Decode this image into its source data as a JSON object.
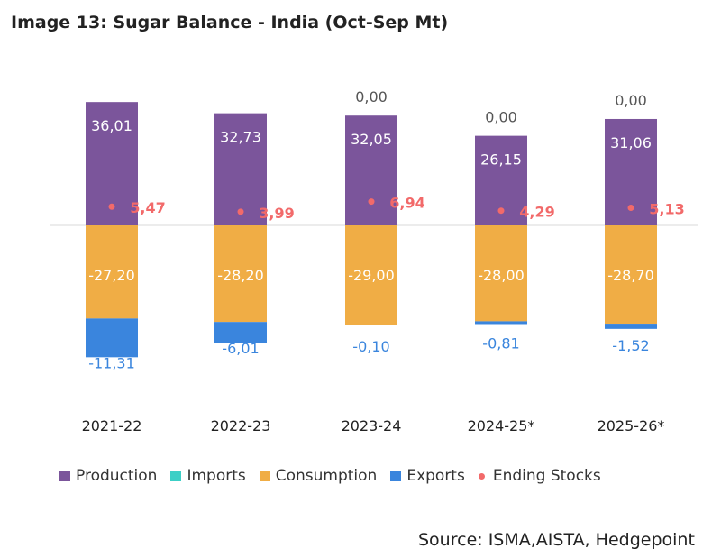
{
  "title": "Image 13: Sugar Balance - India (Oct-Sep Mt)",
  "source": "Source: ISMA,AISTA, Hedgepoint",
  "legend": [
    {
      "label": "Production",
      "color": "#7b559b",
      "shape": "square"
    },
    {
      "label": "Imports",
      "color": "#3ccfc6",
      "shape": "square"
    },
    {
      "label": "Consumption",
      "color": "#f0ad45",
      "shape": "square"
    },
    {
      "label": "Exports",
      "color": "#3a85dd",
      "shape": "square"
    },
    {
      "label": "Ending Stocks",
      "color": "#f26a6a",
      "shape": "dot"
    }
  ],
  "chart_data": {
    "type": "bar",
    "stacked": true,
    "categories": [
      "2021-22",
      "2022-23",
      "2023-24",
      "2024-25*",
      "2025-26*"
    ],
    "series": [
      {
        "name": "Production",
        "color": "#7b559b",
        "values": [
          36.01,
          32.73,
          32.05,
          26.15,
          31.06
        ],
        "labels": [
          "36,01",
          "32,73",
          "32,05",
          "26,15",
          "31,06"
        ]
      },
      {
        "name": "Imports",
        "color": "#3ccfc6",
        "values": [
          null,
          null,
          0.0,
          0.0,
          0.0
        ],
        "labels": [
          "",
          "",
          "0,00",
          "0,00",
          "0,00"
        ]
      },
      {
        "name": "Consumption",
        "color": "#f0ad45",
        "values": [
          -27.2,
          -28.2,
          -29.0,
          -28.0,
          -28.7
        ],
        "labels": [
          "-27,20",
          "-28,20",
          "-29,00",
          "-28,00",
          "-28,70"
        ]
      },
      {
        "name": "Exports",
        "color": "#3a85dd",
        "values": [
          -11.31,
          -6.01,
          -0.1,
          -0.81,
          -1.52
        ],
        "labels": [
          "-11,31",
          "-6,01",
          "-0,10",
          "-0,81",
          "-1,52"
        ]
      },
      {
        "name": "Ending Stocks",
        "type": "scatter",
        "color": "#f26a6a",
        "values": [
          5.47,
          3.99,
          6.94,
          4.29,
          5.13
        ],
        "labels": [
          "5,47",
          "3,99",
          "6,94",
          "4,29",
          "5,13"
        ]
      }
    ],
    "ylim": [
      -40,
      40
    ],
    "grid": false,
    "legend_position": "bottom"
  }
}
